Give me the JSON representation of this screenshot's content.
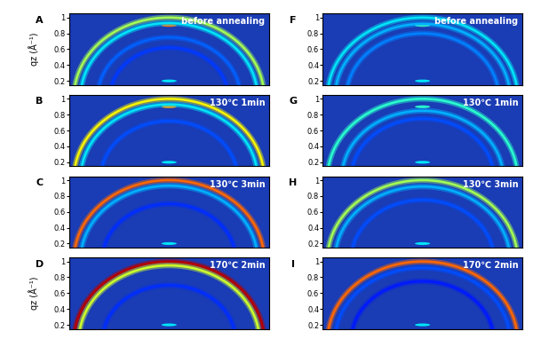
{
  "chart_data": [
    {
      "type": "rings",
      "panel": "A",
      "annotation": "before annealing",
      "ylabel": "qz (Å⁻¹)",
      "xlim": [
        -1.05,
        1.05
      ],
      "ylim": [
        0.15,
        1.05
      ],
      "yticks": [
        0.2,
        0.4,
        0.6,
        0.8,
        1
      ],
      "tick_labels": "y",
      "clim": [
        0,
        1
      ],
      "rings": [
        {
          "q": 1.0,
          "intensity": 0.55
        },
        {
          "q": 0.93,
          "intensity": 0.35
        },
        {
          "q": 0.75,
          "intensity": 0.22
        },
        {
          "q": 0.62,
          "intensity": 0.18
        }
      ],
      "spots": [
        {
          "q": 0.9,
          "intensity": 0.8
        },
        {
          "q": 0.2,
          "intensity": 0.35
        }
      ]
    },
    {
      "type": "rings",
      "panel": "B",
      "annotation": "130℃ 1min",
      "xlim": [
        -1.05,
        1.05
      ],
      "ylim": [
        0.15,
        1.05
      ],
      "yticks": [
        0.2,
        0.4,
        0.6,
        0.8,
        1
      ],
      "tick_labels": "y",
      "clim": [
        0,
        1
      ],
      "rings": [
        {
          "q": 1.0,
          "intensity": 0.65
        },
        {
          "q": 0.93,
          "intensity": 0.35
        },
        {
          "q": 0.72,
          "intensity": 0.2
        }
      ],
      "spots": [
        {
          "q": 0.9,
          "intensity": 0.75
        },
        {
          "q": 0.2,
          "intensity": 0.35
        }
      ]
    },
    {
      "type": "rings",
      "panel": "C",
      "annotation": "130℃ 3min",
      "xlim": [
        -1.05,
        1.05
      ],
      "ylim": [
        0.15,
        1.05
      ],
      "yticks": [
        0.2,
        0.4,
        0.6,
        0.8,
        1
      ],
      "tick_labels": "y",
      "clim": [
        0,
        1
      ],
      "rings": [
        {
          "q": 1.0,
          "intensity": 0.8
        },
        {
          "q": 0.93,
          "intensity": 0.3
        },
        {
          "q": 0.7,
          "intensity": 0.17
        }
      ],
      "spots": [
        {
          "q": 0.2,
          "intensity": 0.35
        }
      ]
    },
    {
      "type": "rings",
      "panel": "D",
      "annotation": "170℃ 2min",
      "ylabel": "qz (Å⁻¹)",
      "xlim": [
        -1.05,
        1.05
      ],
      "ylim": [
        0.15,
        1.05
      ],
      "yticks": [
        0.2,
        0.4,
        0.6,
        0.8,
        1
      ],
      "tick_labels": "y",
      "clim": [
        0,
        1
      ],
      "rings": [
        {
          "q": 1.0,
          "intensity": 0.95
        },
        {
          "q": 0.95,
          "intensity": 0.6
        },
        {
          "q": 0.7,
          "intensity": 0.17
        }
      ],
      "spots": [
        {
          "q": 0.2,
          "intensity": 0.35
        }
      ]
    },
    {
      "type": "rings",
      "panel": "F",
      "annotation": "before annealing",
      "xlim": [
        -1.05,
        1.05
      ],
      "ylim": [
        0.15,
        1.05
      ],
      "yticks": [
        0.2,
        0.4,
        0.6,
        0.8,
        1
      ],
      "tick_labels": "y",
      "clim": [
        0,
        1
      ],
      "rings": [
        {
          "q": 1.0,
          "intensity": 0.35
        },
        {
          "q": 0.92,
          "intensity": 0.3
        },
        {
          "q": 0.8,
          "intensity": 0.25
        }
      ],
      "spots": [
        {
          "q": 0.9,
          "intensity": 0.45
        },
        {
          "q": 0.2,
          "intensity": 0.35
        }
      ]
    },
    {
      "type": "rings",
      "panel": "G",
      "annotation": "130℃ 1min",
      "xlim": [
        -1.05,
        1.05
      ],
      "ylim": [
        0.15,
        1.05
      ],
      "yticks": [
        0.2,
        0.4,
        0.6,
        0.8,
        1
      ],
      "tick_labels": "y",
      "clim": [
        0,
        1
      ],
      "rings": [
        {
          "q": 1.0,
          "intensity": 0.4
        },
        {
          "q": 0.85,
          "intensity": 0.3
        },
        {
          "q": 0.75,
          "intensity": 0.2
        }
      ],
      "spots": [
        {
          "q": 0.9,
          "intensity": 0.4
        },
        {
          "q": 0.2,
          "intensity": 0.35
        }
      ]
    },
    {
      "type": "rings",
      "panel": "H",
      "annotation": "130℃ 3min",
      "xlim": [
        -1.05,
        1.05
      ],
      "ylim": [
        0.15,
        1.05
      ],
      "yticks": [
        0.2,
        0.4,
        0.6,
        0.8,
        1
      ],
      "tick_labels": "y",
      "clim": [
        0,
        1
      ],
      "rings": [
        {
          "q": 1.0,
          "intensity": 0.55
        },
        {
          "q": 0.92,
          "intensity": 0.3
        },
        {
          "q": 0.75,
          "intensity": 0.2
        }
      ],
      "spots": [
        {
          "q": 0.2,
          "intensity": 0.35
        }
      ]
    },
    {
      "type": "rings",
      "panel": "I",
      "annotation": "170℃ 2min",
      "xlim": [
        -1.05,
        1.05
      ],
      "ylim": [
        0.15,
        1.05
      ],
      "yticks": [
        0.2,
        0.4,
        0.6,
        0.8,
        1
      ],
      "tick_labels": "y",
      "clim": [
        0,
        1
      ],
      "rings": [
        {
          "q": 1.0,
          "intensity": 0.8
        },
        {
          "q": 0.92,
          "intensity": 0.2
        },
        {
          "q": 0.75,
          "intensity": 0.15
        }
      ],
      "spots": [
        {
          "q": 0.2,
          "intensity": 0.35
        }
      ]
    }
  ]
}
